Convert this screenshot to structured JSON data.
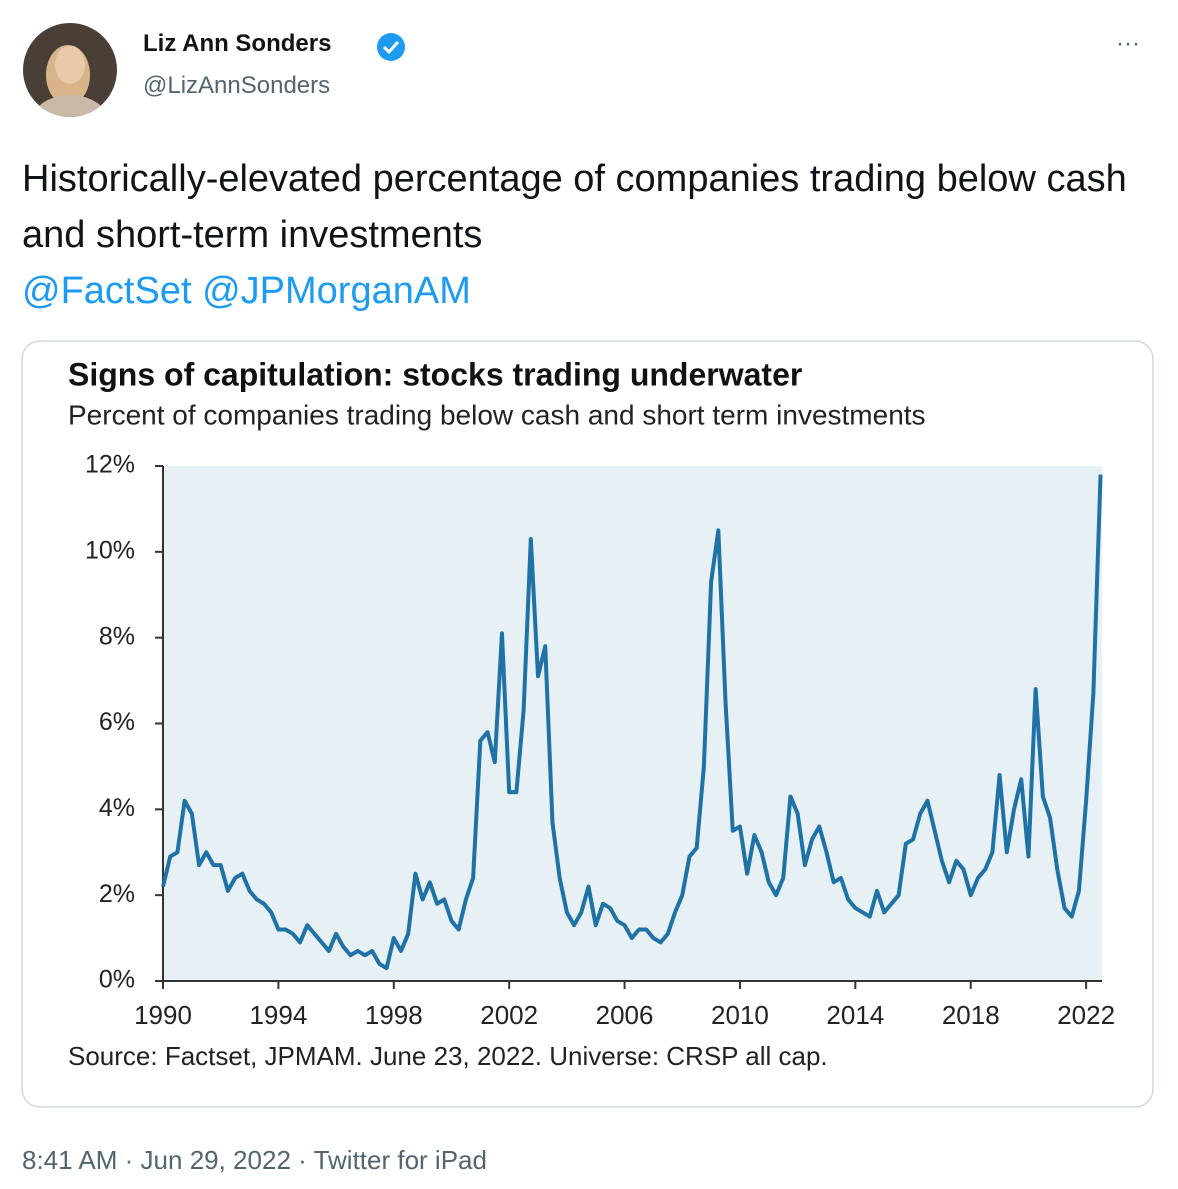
{
  "tweet": {
    "name": "Liz Ann Sonders",
    "handle": "@LizAnnSonders",
    "more": "···",
    "text": "Historically-elevated percentage of companies trading below cash and short-term investments",
    "mentions": [
      "@FactSet",
      "@JPMorganAM"
    ],
    "footer": {
      "time": "8:41 AM",
      "separator": "·",
      "date": "Jun 29, 2022",
      "source": "Twitter for iPad"
    }
  },
  "chart_data": {
    "type": "line",
    "title": "Signs of capitulation: stocks trading underwater",
    "subtitle": "Percent of companies trading below cash and short term investments",
    "source": "Source: Factset, JPMAM. June 23, 2022. Universe: CRSP all cap.",
    "color": "#1f72a6",
    "background": "#e6f0f5",
    "xlim": [
      1990,
      2022.55
    ],
    "xticks": [
      1990,
      1994,
      1998,
      2002,
      2006,
      2010,
      2014,
      2018,
      2022
    ],
    "ylim": [
      0,
      12
    ],
    "yticks": [
      {
        "value": 0,
        "label": "0%"
      },
      {
        "value": 2,
        "label": "2%"
      },
      {
        "value": 4,
        "label": "4%"
      },
      {
        "value": 6,
        "label": "6%"
      },
      {
        "value": 8,
        "label": "8%"
      },
      {
        "value": 10,
        "label": "10%"
      },
      {
        "value": 12,
        "label": "12%"
      }
    ],
    "x": [
      1990,
      1990.25,
      1990.5,
      1990.75,
      1991,
      1991.25,
      1991.5,
      1991.75,
      1992,
      1992.25,
      1992.5,
      1992.75,
      1993,
      1993.25,
      1993.5,
      1993.75,
      1994,
      1994.25,
      1994.5,
      1994.75,
      1995,
      1995.25,
      1995.5,
      1995.75,
      1996,
      1996.25,
      1996.5,
      1996.75,
      1997,
      1997.25,
      1997.5,
      1997.75,
      1998,
      1998.25,
      1998.5,
      1998.75,
      1999,
      1999.25,
      1999.5,
      1999.75,
      2000,
      2000.25,
      2000.5,
      2000.75,
      2001,
      2001.25,
      2001.5,
      2001.75,
      2002,
      2002.25,
      2002.5,
      2002.75,
      2003,
      2003.25,
      2003.5,
      2003.75,
      2004,
      2004.25,
      2004.5,
      2004.75,
      2005,
      2005.25,
      2005.5,
      2005.75,
      2006,
      2006.25,
      2006.5,
      2006.75,
      2007,
      2007.25,
      2007.5,
      2007.75,
      2008,
      2008.25,
      2008.5,
      2008.75,
      2009,
      2009.25,
      2009.5,
      2009.75,
      2010,
      2010.25,
      2010.5,
      2010.75,
      2011,
      2011.25,
      2011.5,
      2011.75,
      2012,
      2012.25,
      2012.5,
      2012.75,
      2013,
      2013.25,
      2013.5,
      2013.75,
      2014,
      2014.25,
      2014.5,
      2014.75,
      2015,
      2015.25,
      2015.5,
      2015.75,
      2016,
      2016.25,
      2016.5,
      2016.75,
      2017,
      2017.25,
      2017.5,
      2017.75,
      2018,
      2018.25,
      2018.5,
      2018.75,
      2019,
      2019.25,
      2019.5,
      2019.75,
      2020,
      2020.25,
      2020.5,
      2020.75,
      2021,
      2021.25,
      2021.5,
      2021.75,
      2022,
      2022.25,
      2022.5
    ],
    "values": [
      2.2,
      2.9,
      3.0,
      4.2,
      3.9,
      2.7,
      3.0,
      2.7,
      2.7,
      2.1,
      2.4,
      2.5,
      2.1,
      1.9,
      1.8,
      1.6,
      1.2,
      1.2,
      1.1,
      0.9,
      1.3,
      1.1,
      0.9,
      0.7,
      1.1,
      0.8,
      0.6,
      0.7,
      0.6,
      0.7,
      0.4,
      0.3,
      1.0,
      0.7,
      1.1,
      2.5,
      1.9,
      2.3,
      1.8,
      1.9,
      1.4,
      1.2,
      1.9,
      2.4,
      5.6,
      5.8,
      5.1,
      8.1,
      4.4,
      4.4,
      6.3,
      10.3,
      7.1,
      7.8,
      3.7,
      2.4,
      1.6,
      1.3,
      1.6,
      2.2,
      1.3,
      1.8,
      1.7,
      1.4,
      1.3,
      1.0,
      1.2,
      1.2,
      1.0,
      0.9,
      1.1,
      1.6,
      2.0,
      2.9,
      3.1,
      5.0,
      9.3,
      10.5,
      6.5,
      3.5,
      3.6,
      2.5,
      3.4,
      3.0,
      2.3,
      2.0,
      2.4,
      4.3,
      3.9,
      2.7,
      3.3,
      3.6,
      3.0,
      2.3,
      2.4,
      1.9,
      1.7,
      1.6,
      1.5,
      2.1,
      1.6,
      1.8,
      2.0,
      3.2,
      3.3,
      3.9,
      4.2,
      3.5,
      2.8,
      2.3,
      2.8,
      2.6,
      2.0,
      2.4,
      2.6,
      3.0,
      4.8,
      3.0,
      4.0,
      4.7,
      2.9,
      6.8,
      4.3,
      3.8,
      2.6,
      1.7,
      1.5,
      2.1,
      4.2,
      6.7,
      11.8
    ]
  }
}
